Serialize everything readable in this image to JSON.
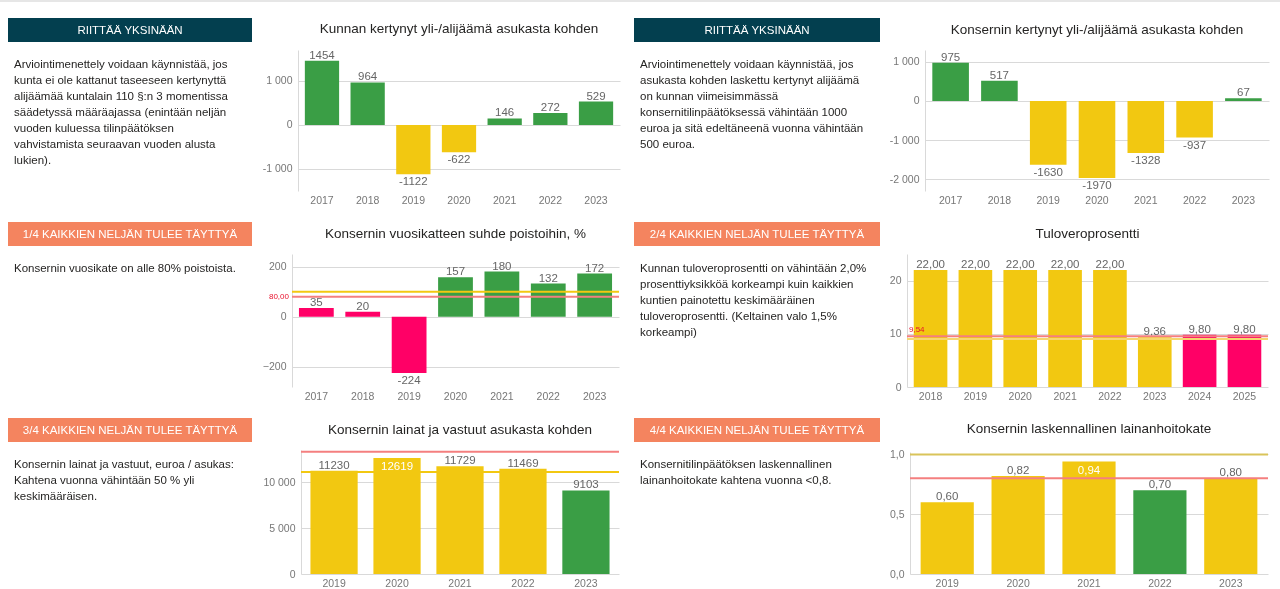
{
  "chart_data": [
    {
      "type": "other",
      "title": "RIITTÄÄ YKSINÄÄN",
      "color": "#033f4f",
      "annotations": [
        "Arviointimenettely voidaan käynnistää, jos kunta ei ole kattanut taseeseen kertynyttä alijäämää kuntalain 110 §:n 3 momentissa säädetyssä määräajassa (enintään neljän vuoden kuluessa tilinpäätöksen vahvistamista seuraavan vuoden alusta lukien)."
      ]
    },
    {
      "type": "bar",
      "title": "Kunnan kertynyt yli-/alijäämä asukasta kohden",
      "categories": [
        "2017",
        "2018",
        "2019",
        "2020",
        "2021",
        "2022",
        "2023"
      ],
      "values": [
        1454,
        964,
        -1122,
        -622,
        146,
        272,
        529
      ],
      "colors": [
        "#3a9e45",
        "#3a9e45",
        "#f2c811",
        "#f2c811",
        "#3a9e45",
        "#3a9e45",
        "#3a9e45"
      ],
      "ylim": [
        -1500,
        1700
      ],
      "yticks": [
        {
          "value": -1000,
          "label": "-1 000"
        },
        0,
        {
          "value": 1000,
          "label": "1 000"
        }
      ],
      "grid": "y",
      "data_labels": true
    },
    {
      "type": "other",
      "title": "RIITTÄÄ YKSINÄÄN",
      "color": "#033f4f",
      "annotations": [
        "Arviointimenettely voidaan käynnistää, jos asukasta kohden laskettu kertynyt alijäämä on kunnan viimeisimmässä konsernitilinpäätöksessä vähintään 1000 euroa ja sitä edeltäneenä vuonna vähintään 500 euroa."
      ]
    },
    {
      "type": "bar",
      "title": "Konsernin kertynyt yli-/alijäämä asukasta kohden",
      "categories": [
        "2017",
        "2018",
        "2019",
        "2020",
        "2021",
        "2022",
        "2023"
      ],
      "values": [
        975,
        517,
        -1630,
        -1970,
        -1328,
        -937,
        67
      ],
      "colors": [
        "#3a9e45",
        "#3a9e45",
        "#f2c811",
        "#f2c811",
        "#f2c811",
        "#f2c811",
        "#3a9e45"
      ],
      "ylim": [
        -2300,
        1300
      ],
      "yticks": [
        {
          "value": -2000,
          "label": "-2 000"
        },
        {
          "value": -1000,
          "label": "-1 000"
        },
        0,
        {
          "value": 1000,
          "label": "1 000"
        }
      ],
      "grid": "y",
      "data_labels": true
    },
    {
      "type": "other",
      "title": "1/4 KAIKKIEN NELJÄN TULEE TÄYTTYÄ",
      "color": "#f4845f",
      "annotations": [
        "Konsernin vuosikate on alle 80% poistoista."
      ]
    },
    {
      "type": "bar",
      "title": "Konsernin vuosikatteen suhde poistoihin, %",
      "categories": [
        "2017",
        "2018",
        "2019",
        "2020",
        "2021",
        "2022",
        "2023"
      ],
      "values": [
        35,
        20,
        -224,
        157,
        180,
        132,
        172
      ],
      "colors": [
        "#ff0066",
        "#ff0066",
        "#ff0066",
        "#3a9e45",
        "#3a9e45",
        "#3a9e45",
        "#3a9e45"
      ],
      "ylim": [
        -280,
        250
      ],
      "yticks": [
        -200,
        0,
        200
      ],
      "grid": "y",
      "data_labels": true,
      "ref_lines": [
        {
          "axis": "y",
          "value": 100,
          "color": "#f2c811"
        },
        {
          "axis": "y",
          "value": 80,
          "label": "80,00",
          "color": "#f47f7f"
        }
      ]
    },
    {
      "type": "other",
      "title": "2/4 KAIKKIEN NELJÄN TULEE TÄYTTYÄ",
      "color": "#f4845f",
      "annotations": [
        "Kunnan tuloveroprosentti on vähintään 2,0% prosenttiyksikköä korkeampi kuin kaikkien kuntien painotettu keskimääräinen tuloveroprosentti. (Keltainen valo 1,5% korkeampi)"
      ]
    },
    {
      "type": "bar",
      "title": "Tuloveroprosentti",
      "categories": [
        "2018",
        "2019",
        "2020",
        "2021",
        "2022",
        "2023",
        "2024",
        "2025"
      ],
      "values": [
        22,
        22,
        22,
        22,
        22,
        9.36,
        9.8,
        9.8
      ],
      "value_labels": [
        "22,00",
        "22,00",
        "22,00",
        "22,00",
        "22,00",
        "9,36",
        "9,80",
        "9,80"
      ],
      "colors": [
        "#f2c811",
        "#f2c811",
        "#f2c811",
        "#f2c811",
        "#f2c811",
        "#f2c811",
        "#ff0066",
        "#ff0066"
      ],
      "ylim": [
        0,
        25
      ],
      "yticks": [
        0,
        10,
        20
      ],
      "grid": "y",
      "ref_lines": [
        {
          "axis": "y",
          "value": 9.04,
          "color": "#f5d76e"
        },
        {
          "axis": "y",
          "value": 9.54,
          "label": "9,54",
          "color": "#f47f7f"
        }
      ]
    },
    {
      "type": "other",
      "title": "3/4 KAIKKIEN NELJÄN TULEE TÄYTTYÄ",
      "color": "#f4845f",
      "annotations": [
        "Konsernin lainat ja vastuut, euroa / asukas: Kahtena vuonna vähintään 50 % yli keskimääräisen."
      ]
    },
    {
      "type": "bar",
      "title": "Konsernin lainat ja vastuut asukasta kohden",
      "categories": [
        "2019",
        "2020",
        "2021",
        "2022",
        "2023"
      ],
      "values": [
        11230,
        12619,
        11729,
        11469,
        9103
      ],
      "colors": [
        "#f2c811",
        "#f2c811",
        "#f2c811",
        "#f2c811",
        "#3a9e45"
      ],
      "ylim": [
        0,
        13500
      ],
      "yticks": [
        0,
        {
          "value": 5000,
          "label": "5 000"
        },
        {
          "value": 10000,
          "label": "10 000"
        }
      ],
      "grid": "y",
      "data_labels": true,
      "ref_lines": [
        {
          "axis": "y",
          "value": 13300,
          "color": "#f47f7f"
        },
        {
          "axis": "y",
          "value": 11100,
          "color": "#f2c811"
        }
      ]
    },
    {
      "type": "other",
      "title": "4/4 KAIKKIEN NELJÄN TULEE TÄYTTYÄ",
      "color": "#f4845f",
      "annotations": [
        "Konsernitilinpäätöksen laskennallinen lainanhoitokate kahtena vuonna <0,8."
      ]
    },
    {
      "type": "bar",
      "title": "Konsernin laskennallinen lainanhoitokate",
      "categories": [
        "2019",
        "2020",
        "2021",
        "2022",
        "2023"
      ],
      "values": [
        0.6,
        0.82,
        0.94,
        0.7,
        0.8
      ],
      "value_labels": [
        "0,60",
        "0,82",
        "0,94",
        "0,70",
        "0,80"
      ],
      "colors": [
        "#f2c811",
        "#f2c811",
        "#f2c811",
        "#3a9e45",
        "#f2c811"
      ],
      "ylim": [
        0,
        1.02
      ],
      "yticks": [
        {
          "value": 0,
          "label": "0,0"
        },
        {
          "value": 0.5,
          "label": "0,5"
        },
        {
          "value": 1,
          "label": "1,0"
        }
      ],
      "grid": "y",
      "ref_lines": [
        {
          "axis": "y",
          "value": 1,
          "color": "#d9c45a"
        },
        {
          "axis": "y",
          "value": 0.8,
          "color": "#f47f7f"
        }
      ]
    }
  ]
}
